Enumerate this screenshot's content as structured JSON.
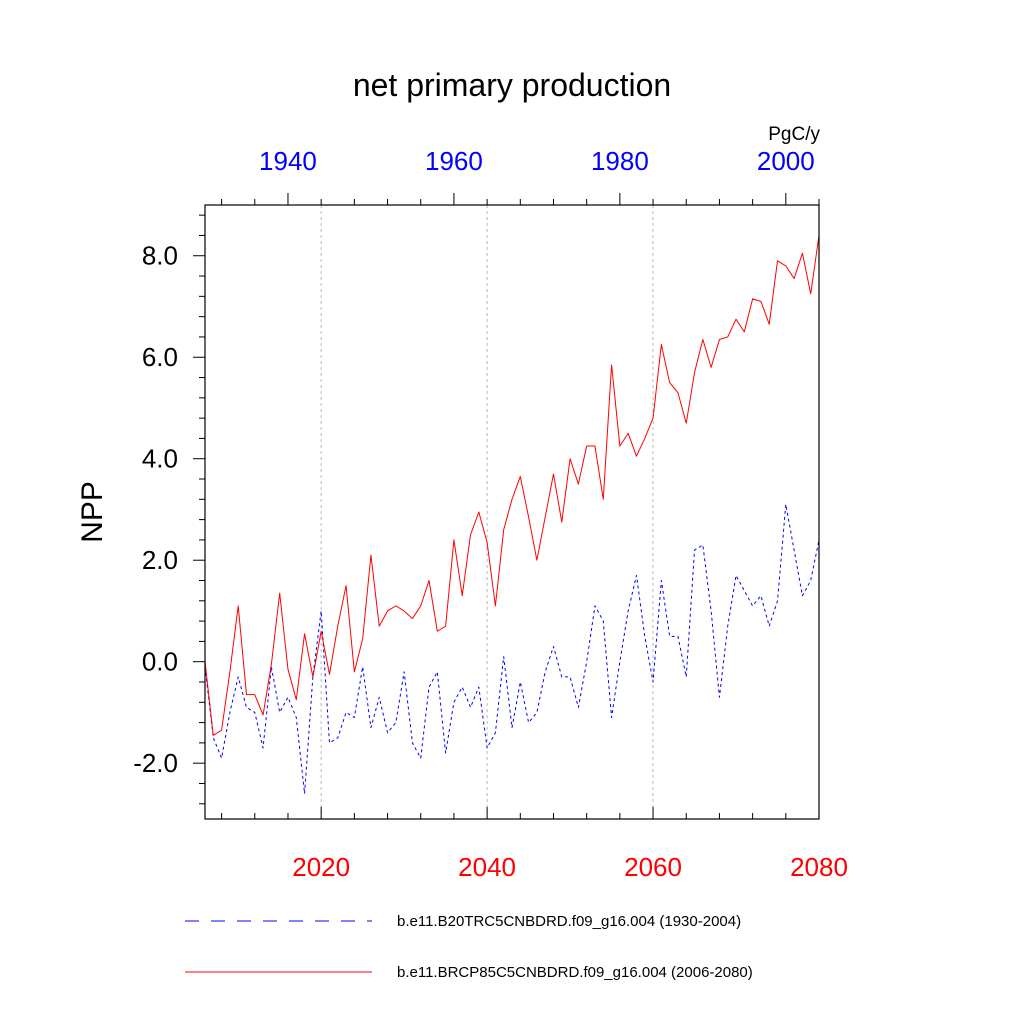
{
  "chart_data": {
    "type": "line",
    "title": "net primary production",
    "units": "PgC/y",
    "ylabel": "NPP",
    "ylim": [
      -3.1,
      9.0
    ],
    "y_ticks": [
      -2.0,
      0.0,
      2.0,
      4.0,
      6.0,
      8.0
    ],
    "y_tick_labels": [
      "-2.0",
      "0.0",
      "2.0",
      "4.0",
      "6.0",
      "8.0"
    ],
    "bottom_axis": {
      "range": [
        2006,
        2080
      ],
      "ticks": [
        2020,
        2040,
        2060,
        2080
      ],
      "tick_labels": [
        "2020",
        "2040",
        "2060",
        "2080"
      ],
      "color": "#ff0000"
    },
    "top_axis": {
      "range": [
        1930,
        2004
      ],
      "ticks": [
        1940,
        1960,
        1980,
        2000
      ],
      "tick_labels": [
        "1940",
        "1960",
        "1980",
        "2000"
      ],
      "color": "#0000ff"
    },
    "gridlines_x": [
      2020,
      2040,
      2060
    ],
    "series": [
      {
        "name": "b.e11.B20TRC5CNBDRD.f09_g16.004 (1930-2004)",
        "color": "#0000ff",
        "dash": "dashed",
        "axis": "top",
        "x_start": 1930,
        "values": [
          -0.1,
          -1.5,
          -1.9,
          -1.0,
          -0.3,
          -0.9,
          -1.0,
          -1.7,
          -0.1,
          -1.0,
          -0.7,
          -1.1,
          -2.6,
          -0.3,
          1.0,
          -1.6,
          -1.5,
          -1.0,
          -1.1,
          -0.1,
          -1.3,
          -0.7,
          -1.4,
          -1.2,
          -0.2,
          -1.6,
          -1.9,
          -0.5,
          -0.2,
          -1.8,
          -0.8,
          -0.5,
          -0.9,
          -0.5,
          -1.7,
          -1.4,
          0.1,
          -1.3,
          -0.4,
          -1.2,
          -1.0,
          -0.2,
          0.3,
          -0.3,
          -0.3,
          -0.9,
          0.0,
          1.1,
          0.8,
          -1.1,
          0.0,
          1.0,
          1.7,
          0.5,
          -0.4,
          1.6,
          0.5,
          0.5,
          -0.3,
          2.2,
          2.3,
          1.0,
          -0.7,
          0.7,
          1.7,
          1.4,
          1.1,
          1.3,
          0.7,
          1.2,
          3.1,
          2.2,
          1.3,
          1.6,
          2.4
        ]
      },
      {
        "name": "b.e11.BRCP85C5CNBDRD.f09_g16.004 (2006-2080)",
        "color": "#ff0000",
        "dash": "solid",
        "axis": "bottom",
        "x_start": 2006,
        "values": [
          0.0,
          -1.45,
          -1.35,
          -0.2,
          1.1,
          -0.65,
          -0.65,
          -1.05,
          -0.05,
          1.35,
          -0.15,
          -0.75,
          0.55,
          -0.3,
          0.6,
          -0.25,
          0.7,
          1.5,
          -0.2,
          0.45,
          2.1,
          0.7,
          1.0,
          1.1,
          1.0,
          0.85,
          1.1,
          1.6,
          0.6,
          0.7,
          2.4,
          1.3,
          2.5,
          2.95,
          2.35,
          1.1,
          2.6,
          3.2,
          3.65,
          2.85,
          2.0,
          2.85,
          3.7,
          2.75,
          4.0,
          3.5,
          4.25,
          4.25,
          3.2,
          5.85,
          4.25,
          4.5,
          4.05,
          4.4,
          4.8,
          6.25,
          5.5,
          5.3,
          4.7,
          5.7,
          6.35,
          5.8,
          6.35,
          6.4,
          6.75,
          6.5,
          7.15,
          7.1,
          6.65,
          7.9,
          7.8,
          7.55,
          8.05,
          7.25,
          8.4
        ]
      }
    ]
  }
}
